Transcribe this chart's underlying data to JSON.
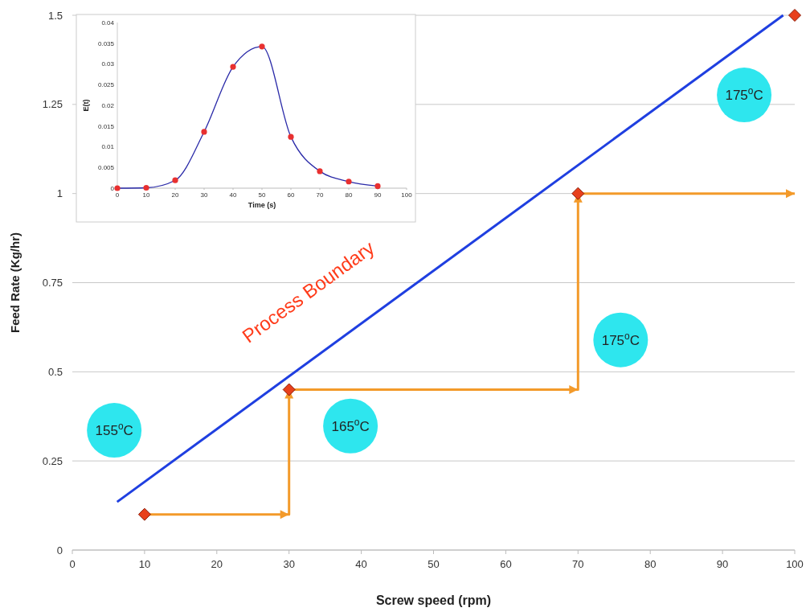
{
  "chart_data": [
    {
      "type": "scatter",
      "xlabel": "Screw speed (rpm)",
      "ylabel": "Feed Rate (Kg/hr)",
      "xlim": [
        0,
        100
      ],
      "ylim": [
        0,
        1.5
      ],
      "xticks": [
        0,
        10,
        20,
        30,
        40,
        50,
        60,
        70,
        80,
        90,
        100
      ],
      "yticks": [
        0,
        0.25,
        0.5,
        0.75,
        1,
        1.25,
        1.5
      ],
      "grid": "y",
      "series": [
        {
          "type": "line",
          "color": "#1f3fe0",
          "x": [
            6.2,
            98.4
          ],
          "values": [
            0.135,
            1.5
          ]
        },
        {
          "type": "step",
          "color": "#f39a2a",
          "x": [
            10,
            30,
            70,
            100
          ],
          "values": [
            0.1,
            0.45,
            1,
            1
          ]
        },
        {
          "color": "#e8401c",
          "marker": "diamond",
          "x": [
            10,
            30,
            70,
            100
          ],
          "values": [
            0.1,
            0.45,
            1,
            1.5
          ]
        }
      ],
      "annotations": [
        "Process Boundary",
        "155$^{o}$C",
        "165$^{o}$C",
        "175$^{o}$C",
        "175$^{o}$C"
      ]
    },
    {
      "type": "line",
      "xlabel": "Time (s)",
      "ylabel": "E(t)",
      "xlim": [
        0,
        100
      ],
      "ylim": [
        0,
        0.04
      ],
      "xticks": [
        0,
        10,
        20,
        30,
        40,
        50,
        60,
        70,
        80,
        90,
        100
      ],
      "yticks": [
        0,
        0.005,
        0.01,
        0.015,
        0.02,
        0.025,
        0.03,
        0.035,
        0.04
      ],
      "grid": false,
      "series": [
        {
          "color": "#2a2aa8",
          "x": [
            0,
            10,
            20,
            30,
            40,
            50,
            60,
            70,
            80,
            90
          ],
          "values": [
            0,
            0.0001,
            0.0019,
            0.0136,
            0.0293,
            0.0342,
            0.0124,
            0.0041,
            0.0016,
            0.0005
          ]
        },
        {
          "type": "scatter",
          "color": "#e83030",
          "marker": "circle",
          "x": [
            0,
            10,
            20,
            30,
            40,
            50,
            60,
            70,
            80,
            90
          ],
          "values": [
            0,
            0.0001,
            0.0019,
            0.0136,
            0.0293,
            0.0342,
            0.0124,
            0.0041,
            0.0016,
            0.0005
          ]
        }
      ]
    }
  ]
}
